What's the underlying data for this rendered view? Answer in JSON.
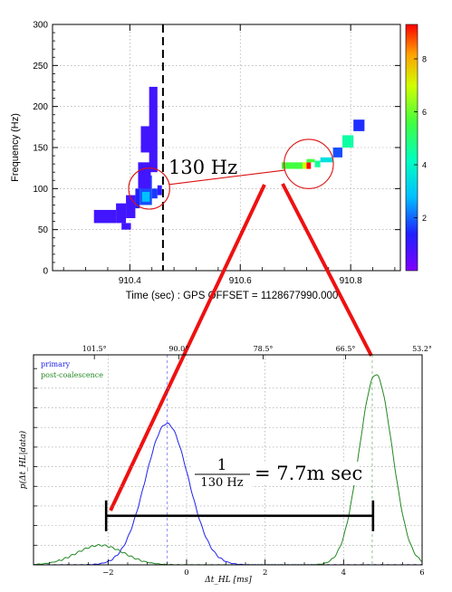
{
  "chart_data": [
    {
      "type": "heatmap",
      "xlabel": "Time (sec) : GPS OFFSET = 1128677990.000",
      "ylabel": "Frequency (Hz)",
      "xlim": [
        910.26,
        910.89
      ],
      "ylim": [
        0,
        300
      ],
      "x_ticks": [
        910.4,
        910.6,
        910.8
      ],
      "x_tick_labels": [
        "910.4",
        "910.6",
        "910.8"
      ],
      "y_ticks": [
        0,
        50,
        100,
        150,
        200,
        250,
        300
      ],
      "y_tick_labels": [
        "0",
        "50",
        "100",
        "150",
        "200",
        "250",
        "300"
      ],
      "colorbar": {
        "range": [
          0,
          9.3
        ],
        "ticks": [
          2,
          4,
          6,
          8
        ],
        "tick_labels": [
          "2",
          "4",
          "6",
          "8"
        ]
      },
      "dashed_marker_time": 910.46,
      "annotation": "130 Hz",
      "circles": [
        {
          "t": 910.435,
          "f": 100,
          "r_f": 25
        },
        {
          "t": 910.724,
          "f": 130,
          "r_f": 30
        }
      ],
      "pixels": [
        {
          "t0": 910.335,
          "t1": 910.375,
          "f0": 58,
          "f1": 74,
          "v": 0.9
        },
        {
          "t0": 910.375,
          "t1": 910.393,
          "f0": 58,
          "f1": 82,
          "v": 0.9
        },
        {
          "t0": 910.385,
          "t1": 910.402,
          "f0": 50,
          "f1": 58,
          "v": 0.9
        },
        {
          "t0": 910.393,
          "t1": 910.41,
          "f0": 64,
          "f1": 92,
          "v": 0.9
        },
        {
          "t0": 910.41,
          "t1": 910.418,
          "f0": 76,
          "f1": 100,
          "v": 1.4
        },
        {
          "t0": 910.418,
          "t1": 910.44,
          "f0": 80,
          "f1": 116,
          "v": 1.8
        },
        {
          "t0": 910.422,
          "t1": 910.436,
          "f0": 84,
          "f1": 96,
          "v": 2.8
        },
        {
          "t0": 910.44,
          "t1": 910.45,
          "f0": 88,
          "f1": 100,
          "v": 1.6
        },
        {
          "t0": 910.45,
          "t1": 910.458,
          "f0": 92,
          "f1": 104,
          "v": 1.2
        },
        {
          "t0": 910.415,
          "t1": 910.438,
          "f0": 100,
          "f1": 132,
          "v": 0.9
        },
        {
          "t0": 910.42,
          "t1": 910.44,
          "f0": 144,
          "f1": 176,
          "v": 0.9
        },
        {
          "t0": 910.435,
          "t1": 910.45,
          "f0": 120,
          "f1": 224,
          "v": 0.9
        },
        {
          "t0": 910.675,
          "t1": 910.713,
          "f0": 124,
          "f1": 132,
          "v": 5.6
        },
        {
          "t0": 910.713,
          "t1": 910.72,
          "f0": 124,
          "f1": 132,
          "v": 7.0
        },
        {
          "t0": 910.72,
          "t1": 910.728,
          "f0": 124,
          "f1": 132,
          "v": 9.2
        },
        {
          "t0": 910.72,
          "t1": 910.735,
          "f0": 132,
          "f1": 136,
          "v": 5.6
        },
        {
          "t0": 910.735,
          "t1": 910.745,
          "f0": 126,
          "f1": 134,
          "v": 4.6
        },
        {
          "t0": 910.745,
          "t1": 910.768,
          "f0": 132,
          "f1": 138,
          "v": 3.5
        },
        {
          "t0": 910.768,
          "t1": 910.785,
          "f0": 138,
          "f1": 150,
          "v": 1.8
        },
        {
          "t0": 910.785,
          "t1": 910.805,
          "f0": 150,
          "f1": 165,
          "v": 4.5
        },
        {
          "t0": 910.805,
          "t1": 910.825,
          "f0": 170,
          "f1": 184,
          "v": 1.5
        }
      ]
    },
    {
      "type": "line",
      "xlabel": "Δt_HL [ms]",
      "ylabel": "p(Δt_HL|data)",
      "xlim": [
        -3.9,
        6.0
      ],
      "ylim": [
        0,
        1.07
      ],
      "x_ticks": [
        -2,
        0,
        2,
        4,
        6
      ],
      "x_tick_labels": [
        "−2",
        "0",
        "2",
        "4",
        "6"
      ],
      "top_axis_tick_labels": [
        "101.5°",
        "90.0°",
        "78.5°",
        "66.5°",
        "53.2°"
      ],
      "top_axis_ticks": [
        -2.35,
        -0.2,
        1.95,
        4.05,
        6.0
      ],
      "series": [
        {
          "name": "primary",
          "color": "#2222ee",
          "peaks": [
            {
              "mu": -0.5,
              "sigma": 0.55,
              "amp": 0.72
            }
          ]
        },
        {
          "name": "post-coalescence",
          "color": "#228822",
          "peaks": [
            {
              "mu": -2.2,
              "sigma": 0.6,
              "amp": 0.1
            },
            {
              "mu": 4.82,
              "sigma": 0.42,
              "amp": 0.97
            }
          ]
        }
      ],
      "peak_markers": [
        -0.5,
        4.73
      ],
      "annotation_fraction_numerator": "1",
      "annotation_fraction_denominator": "130 Hz",
      "annotation_value": "= 7.7m sec",
      "bracket_from": -2.05,
      "bracket_to": 4.75,
      "bracket_level": 0.25
    }
  ]
}
